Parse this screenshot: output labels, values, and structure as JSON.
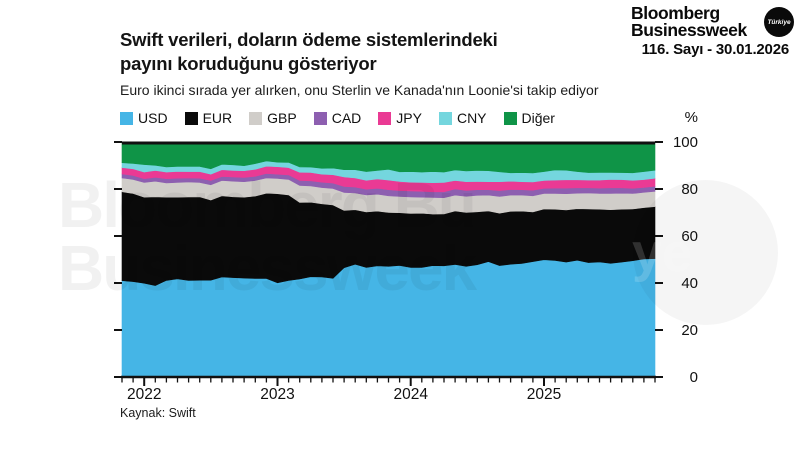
{
  "masthead": {
    "brand_line1": "Bloomberg",
    "brand_line2": "Businessweek",
    "brand_badge": "Türkiye",
    "issue_line": "116. Sayı - 30.01.2026"
  },
  "chart_header": {
    "title_line1": "Swift verileri, doların ödeme sistemlerindeki",
    "title_line2": "payını koruduğunu gösteriyor",
    "subtitle": "Euro ikinci sırada yer alırken, onu Sterlin ve Kanada'nın Loonie'si takip ediyor"
  },
  "source_note": "Kaynak: Swift",
  "watermark": {
    "line1": "Bloomberg Bu",
    "line2": "Businessweek",
    "badge_fragment": "ye"
  },
  "chart_data": {
    "type": "area",
    "stacked": true,
    "unit": "%",
    "axis_unit_label": "%",
    "grid": false,
    "legend_position": "top",
    "ylim": [
      0,
      100
    ],
    "y_ticks": [
      0,
      20,
      40,
      60,
      80,
      100
    ],
    "x_frequency": "monthly",
    "x_tick_labels": [
      "2022",
      "2023",
      "2024",
      "2025"
    ],
    "x_tick_indices": [
      2,
      14,
      26,
      38
    ],
    "x": [
      "2021-11",
      "2021-12",
      "2022-01",
      "2022-02",
      "2022-03",
      "2022-04",
      "2022-05",
      "2022-06",
      "2022-07",
      "2022-08",
      "2022-09",
      "2022-10",
      "2022-11",
      "2022-12",
      "2023-01",
      "2023-02",
      "2023-03",
      "2023-04",
      "2023-05",
      "2023-06",
      "2023-07",
      "2023-08",
      "2023-09",
      "2023-10",
      "2023-11",
      "2023-12",
      "2024-01",
      "2024-02",
      "2024-03",
      "2024-04",
      "2024-05",
      "2024-06",
      "2024-07",
      "2024-08",
      "2024-09",
      "2024-10",
      "2024-11",
      "2024-12",
      "2025-01",
      "2025-02",
      "2025-03",
      "2025-04",
      "2025-05",
      "2025-06",
      "2025-07",
      "2025-08",
      "2025-09",
      "2025-10",
      "2025-11"
    ],
    "series": [
      {
        "name": "USD",
        "color": "#45b5e6",
        "values": [
          41.0,
          40.6,
          39.9,
          38.9,
          41.1,
          41.8,
          41.1,
          41.2,
          41.2,
          42.6,
          42.3,
          42.1,
          41.9,
          41.9,
          40.1,
          41.1,
          41.7,
          42.7,
          42.6,
          42.0,
          46.5,
          48.0,
          46.6,
          47.3,
          47.1,
          47.5,
          46.6,
          46.6,
          47.4,
          47.3,
          47.9,
          47.1,
          47.8,
          49.1,
          47.4,
          48.0,
          48.3,
          49.1,
          49.9,
          49.6,
          48.9,
          49.7,
          48.7,
          49.0,
          48.4,
          48.9,
          49.5,
          50.2,
          50.4
        ]
      },
      {
        "name": "EUR",
        "color": "#0a0a0a",
        "values": [
          37.8,
          37.5,
          36.6,
          37.8,
          35.4,
          34.7,
          35.5,
          35.5,
          34.1,
          34.5,
          34.4,
          34.4,
          35.1,
          36.3,
          37.9,
          36.4,
          32.6,
          31.7,
          31.1,
          31.2,
          24.4,
          23.2,
          23.6,
          23.3,
          22.9,
          22.4,
          23.0,
          23.1,
          21.9,
          22.1,
          22.8,
          22.9,
          22.5,
          21.6,
          22.3,
          22.5,
          22.3,
          21.1,
          21.6,
          21.8,
          22.2,
          21.9,
          22.8,
          22.4,
          22.8,
          22.5,
          22.0,
          21.9,
          22.1
        ]
      },
      {
        "name": "GBP",
        "color": "#d0cdc9",
        "values": [
          5.9,
          6.0,
          6.3,
          6.6,
          6.1,
          6.3,
          6.4,
          6.1,
          6.5,
          6.5,
          6.6,
          6.6,
          6.6,
          6.5,
          6.5,
          6.6,
          7.2,
          6.9,
          6.9,
          7.0,
          7.6,
          7.1,
          7.3,
          7.2,
          7.1,
          6.9,
          7.0,
          6.8,
          7.1,
          6.9,
          6.7,
          6.9,
          7.0,
          6.7,
          7.1,
          6.9,
          6.8,
          6.9,
          6.6,
          6.7,
          6.9,
          6.6,
          6.8,
          6.7,
          6.9,
          6.8,
          6.6,
          6.5,
          6.5
        ]
      },
      {
        "name": "CAD",
        "color": "#8d5fb0",
        "values": [
          1.7,
          1.7,
          1.6,
          1.7,
          1.8,
          1.8,
          1.7,
          1.8,
          1.8,
          1.7,
          1.8,
          1.8,
          1.8,
          1.9,
          1.8,
          1.9,
          2.1,
          2.2,
          2.3,
          2.3,
          2.6,
          2.5,
          2.4,
          2.5,
          2.6,
          2.5,
          2.6,
          2.5,
          2.4,
          2.5,
          2.6,
          2.5,
          2.4,
          2.3,
          2.5,
          2.4,
          2.3,
          2.4,
          2.2,
          2.3,
          2.4,
          2.3,
          2.2,
          2.3,
          2.4,
          2.3,
          2.2,
          2.1,
          2.2
        ]
      },
      {
        "name": "JPY",
        "color": "#ea3a94",
        "values": [
          2.7,
          2.8,
          2.8,
          2.9,
          2.8,
          2.9,
          2.7,
          2.8,
          2.7,
          2.9,
          2.8,
          2.9,
          3.0,
          3.1,
          3.2,
          3.1,
          3.5,
          3.5,
          3.4,
          3.6,
          4.0,
          3.9,
          3.8,
          4.0,
          4.1,
          3.9,
          3.7,
          3.8,
          3.9,
          4.0,
          3.6,
          3.7,
          3.5,
          3.4,
          3.8,
          3.5,
          3.4,
          3.5,
          3.3,
          3.4,
          3.5,
          3.4,
          3.3,
          3.4,
          3.6,
          3.5,
          3.4,
          3.3,
          3.4
        ]
      },
      {
        "name": "CNY",
        "color": "#74d6de",
        "values": [
          2.1,
          2.3,
          3.2,
          2.2,
          2.2,
          2.1,
          2.2,
          2.2,
          2.3,
          2.3,
          2.4,
          2.1,
          2.4,
          2.2,
          1.9,
          2.2,
          2.3,
          2.3,
          2.5,
          2.8,
          3.1,
          3.5,
          3.7,
          3.6,
          4.6,
          4.1,
          4.5,
          4.4,
          4.7,
          4.4,
          4.5,
          4.6,
          4.7,
          4.7,
          4.2,
          3.6,
          3.9,
          3.8,
          3.8,
          4.3,
          4.1,
          3.5,
          3.2,
          3.2,
          2.9,
          3.0,
          3.2,
          3.4,
          3.4
        ]
      },
      {
        "name": "Diğer",
        "color": "#0f9447",
        "values": [
          8.8,
          9.1,
          9.6,
          9.9,
          10.6,
          10.4,
          10.4,
          10.4,
          11.4,
          9.5,
          9.7,
          10.1,
          9.2,
          8.1,
          8.6,
          8.7,
          10.6,
          10.7,
          11.2,
          11.1,
          11.8,
          11.8,
          12.6,
          12.1,
          11.6,
          12.7,
          12.6,
          12.8,
          12.6,
          12.8,
          11.9,
          12.3,
          12.1,
          12.2,
          12.7,
          13.1,
          13.0,
          13.2,
          12.6,
          11.9,
          12.0,
          12.6,
          13.0,
          13.0,
          13.0,
          13.0,
          13.1,
          12.6,
          12.0
        ]
      }
    ]
  }
}
